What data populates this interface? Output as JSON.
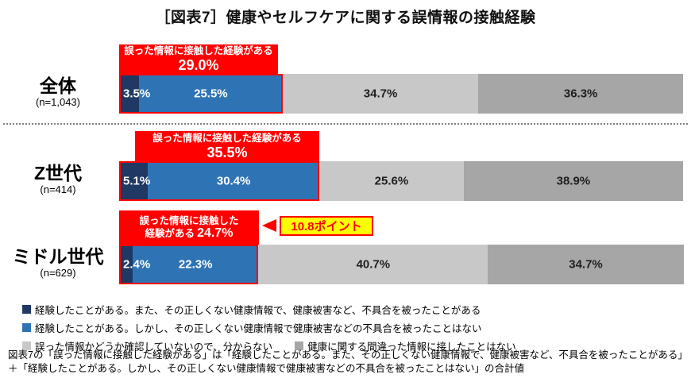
{
  "title": "［図表7］健康やセルフケアに関する誤情報の接触経験",
  "colors": {
    "dark_navy": "#1F3864",
    "blue": "#2E74B5",
    "light_gray": "#C8C8C8",
    "dark_gray": "#A6A6A6",
    "red": "#FF0000",
    "yellow": "#FFFF00"
  },
  "chart_data": {
    "type": "bar",
    "variant": "horizontal-stacked",
    "unit": "%",
    "xlim": [
      0,
      100
    ],
    "categories": [
      "全体",
      "Z世代",
      "ミドル世代"
    ],
    "sample_sizes": [
      "(n=1,043)",
      "(n=414)",
      "(n=629)"
    ],
    "series": [
      {
        "name": "経験したことがある。また、その正しくない健康情報で、健康被害など、不具合を被ったことがある",
        "color": "#1F3864",
        "values": [
          3.5,
          5.1,
          2.4
        ]
      },
      {
        "name": "経験したことがある。しかし、その正しくない健康情報で健康被害などの不具合を被ったことはない",
        "color": "#2E74B5",
        "values": [
          25.5,
          30.4,
          22.3
        ]
      },
      {
        "name": "誤った情報かどうか確認していないので、分からない",
        "color": "#C8C8C8",
        "values": [
          34.7,
          25.6,
          40.7
        ]
      },
      {
        "name": "健康に関する間違った情報に接したことはない",
        "color": "#A6A6A6",
        "values": [
          36.3,
          38.9,
          34.7
        ]
      }
    ],
    "callouts": [
      {
        "lines": [
          "誤った情報に接触した経験がある"
        ],
        "value": "29.0%",
        "value_inline": false
      },
      {
        "lines": [
          "誤った情報に接触した経験がある"
        ],
        "value": "35.5%",
        "value_inline": false
      },
      {
        "lines": [
          "誤った情報に接触した",
          "経験がある"
        ],
        "value": "24.7%",
        "value_inline": true
      }
    ],
    "annotation": "10.8ポイント"
  },
  "footnote": [
    "図表7の「誤った情報に接触した経験がある」は「経験したことがある。また、その正しくない健康情報で、健康被害など、不具合を被ったことがある」",
    "＋「経験したことがある。しかし、その正しくない健康情報で健康被害などの不具合を被ったことはない」の合計値"
  ]
}
